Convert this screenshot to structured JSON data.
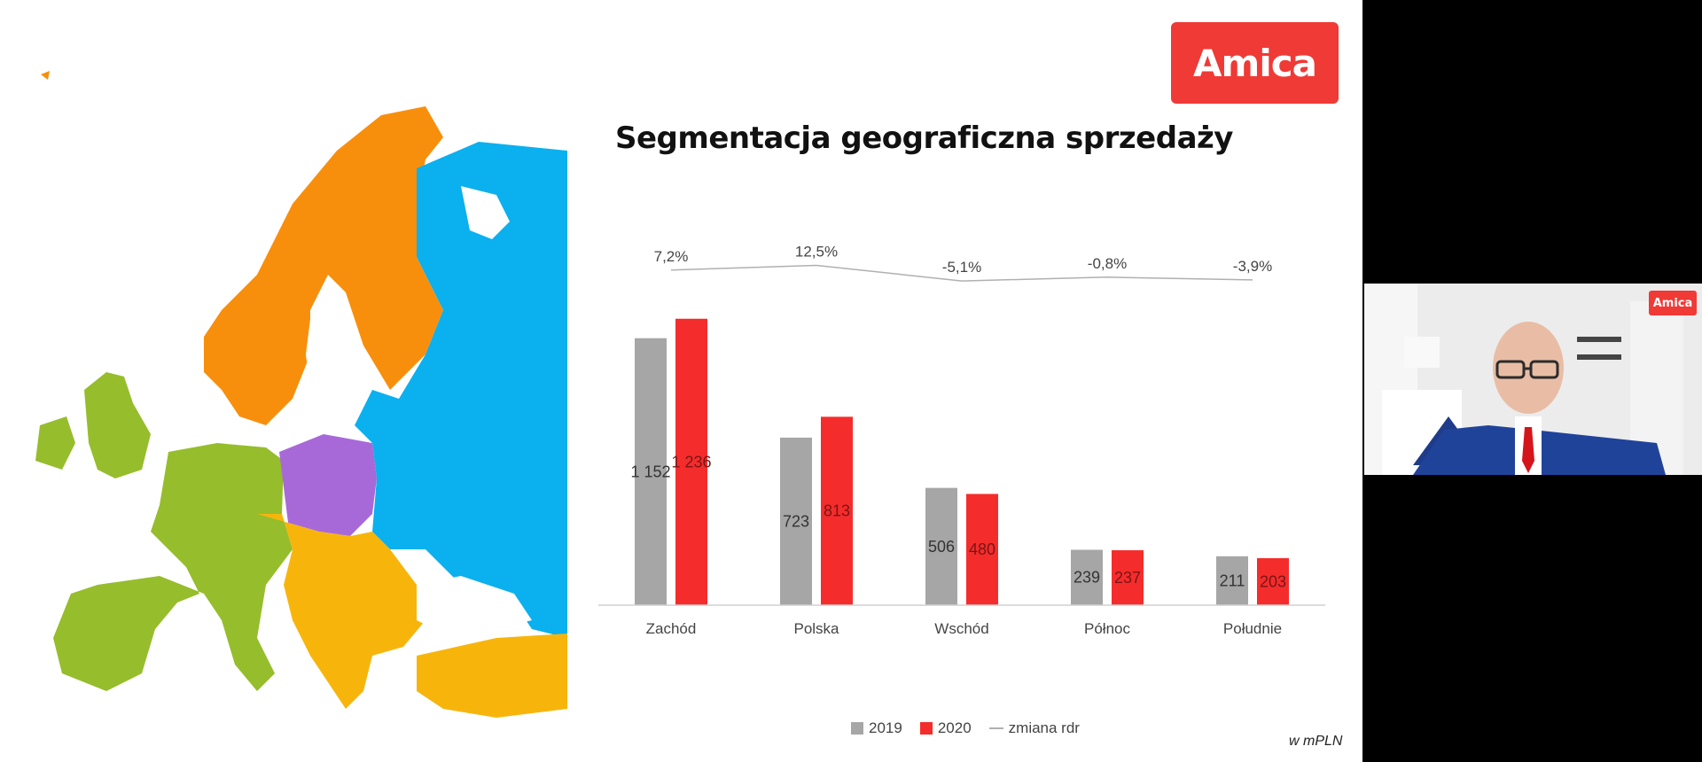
{
  "slide": {
    "title": "Segmentacja geograficzna sprzedaży",
    "logo_text": "Amica",
    "unit_note": "w mPLN"
  },
  "map": {
    "colors": {
      "west": "#96bd2c",
      "poland": "#a869d8",
      "east": "#0bb0ee",
      "north": "#f88f0c",
      "south": "#f7b50c",
      "water": "#ffffff"
    }
  },
  "chart_data": {
    "type": "bar",
    "categories": [
      "Zachód",
      "Polska",
      "Wschód",
      "Północ",
      "Południe"
    ],
    "series": [
      {
        "name": "2019",
        "color": "#a6a6a6",
        "values": [
          1152,
          723,
          506,
          239,
          211
        ],
        "labels": [
          "1 152",
          "723",
          "506",
          "239",
          "211"
        ]
      },
      {
        "name": "2020",
        "color": "#f52c2c",
        "values": [
          1236,
          813,
          480,
          237,
          203
        ],
        "labels": [
          "1 236",
          "813",
          "480",
          "237",
          "203"
        ]
      }
    ],
    "change_series": {
      "name": "zmiana rdr",
      "color": "#b0b0b0",
      "values": [
        7.2,
        12.5,
        -5.1,
        -0.8,
        -3.9
      ],
      "labels": [
        "7,2%",
        "12,5%",
        "-5,1%",
        "-0,8%",
        "-3,9%"
      ]
    },
    "legend": [
      "2019",
      "2020",
      "zmiana rdr"
    ],
    "legend_position": "bottom",
    "ylim": [
      0,
      1300
    ],
    "grid": false
  },
  "webcam": {
    "logo_text": "Amica"
  }
}
